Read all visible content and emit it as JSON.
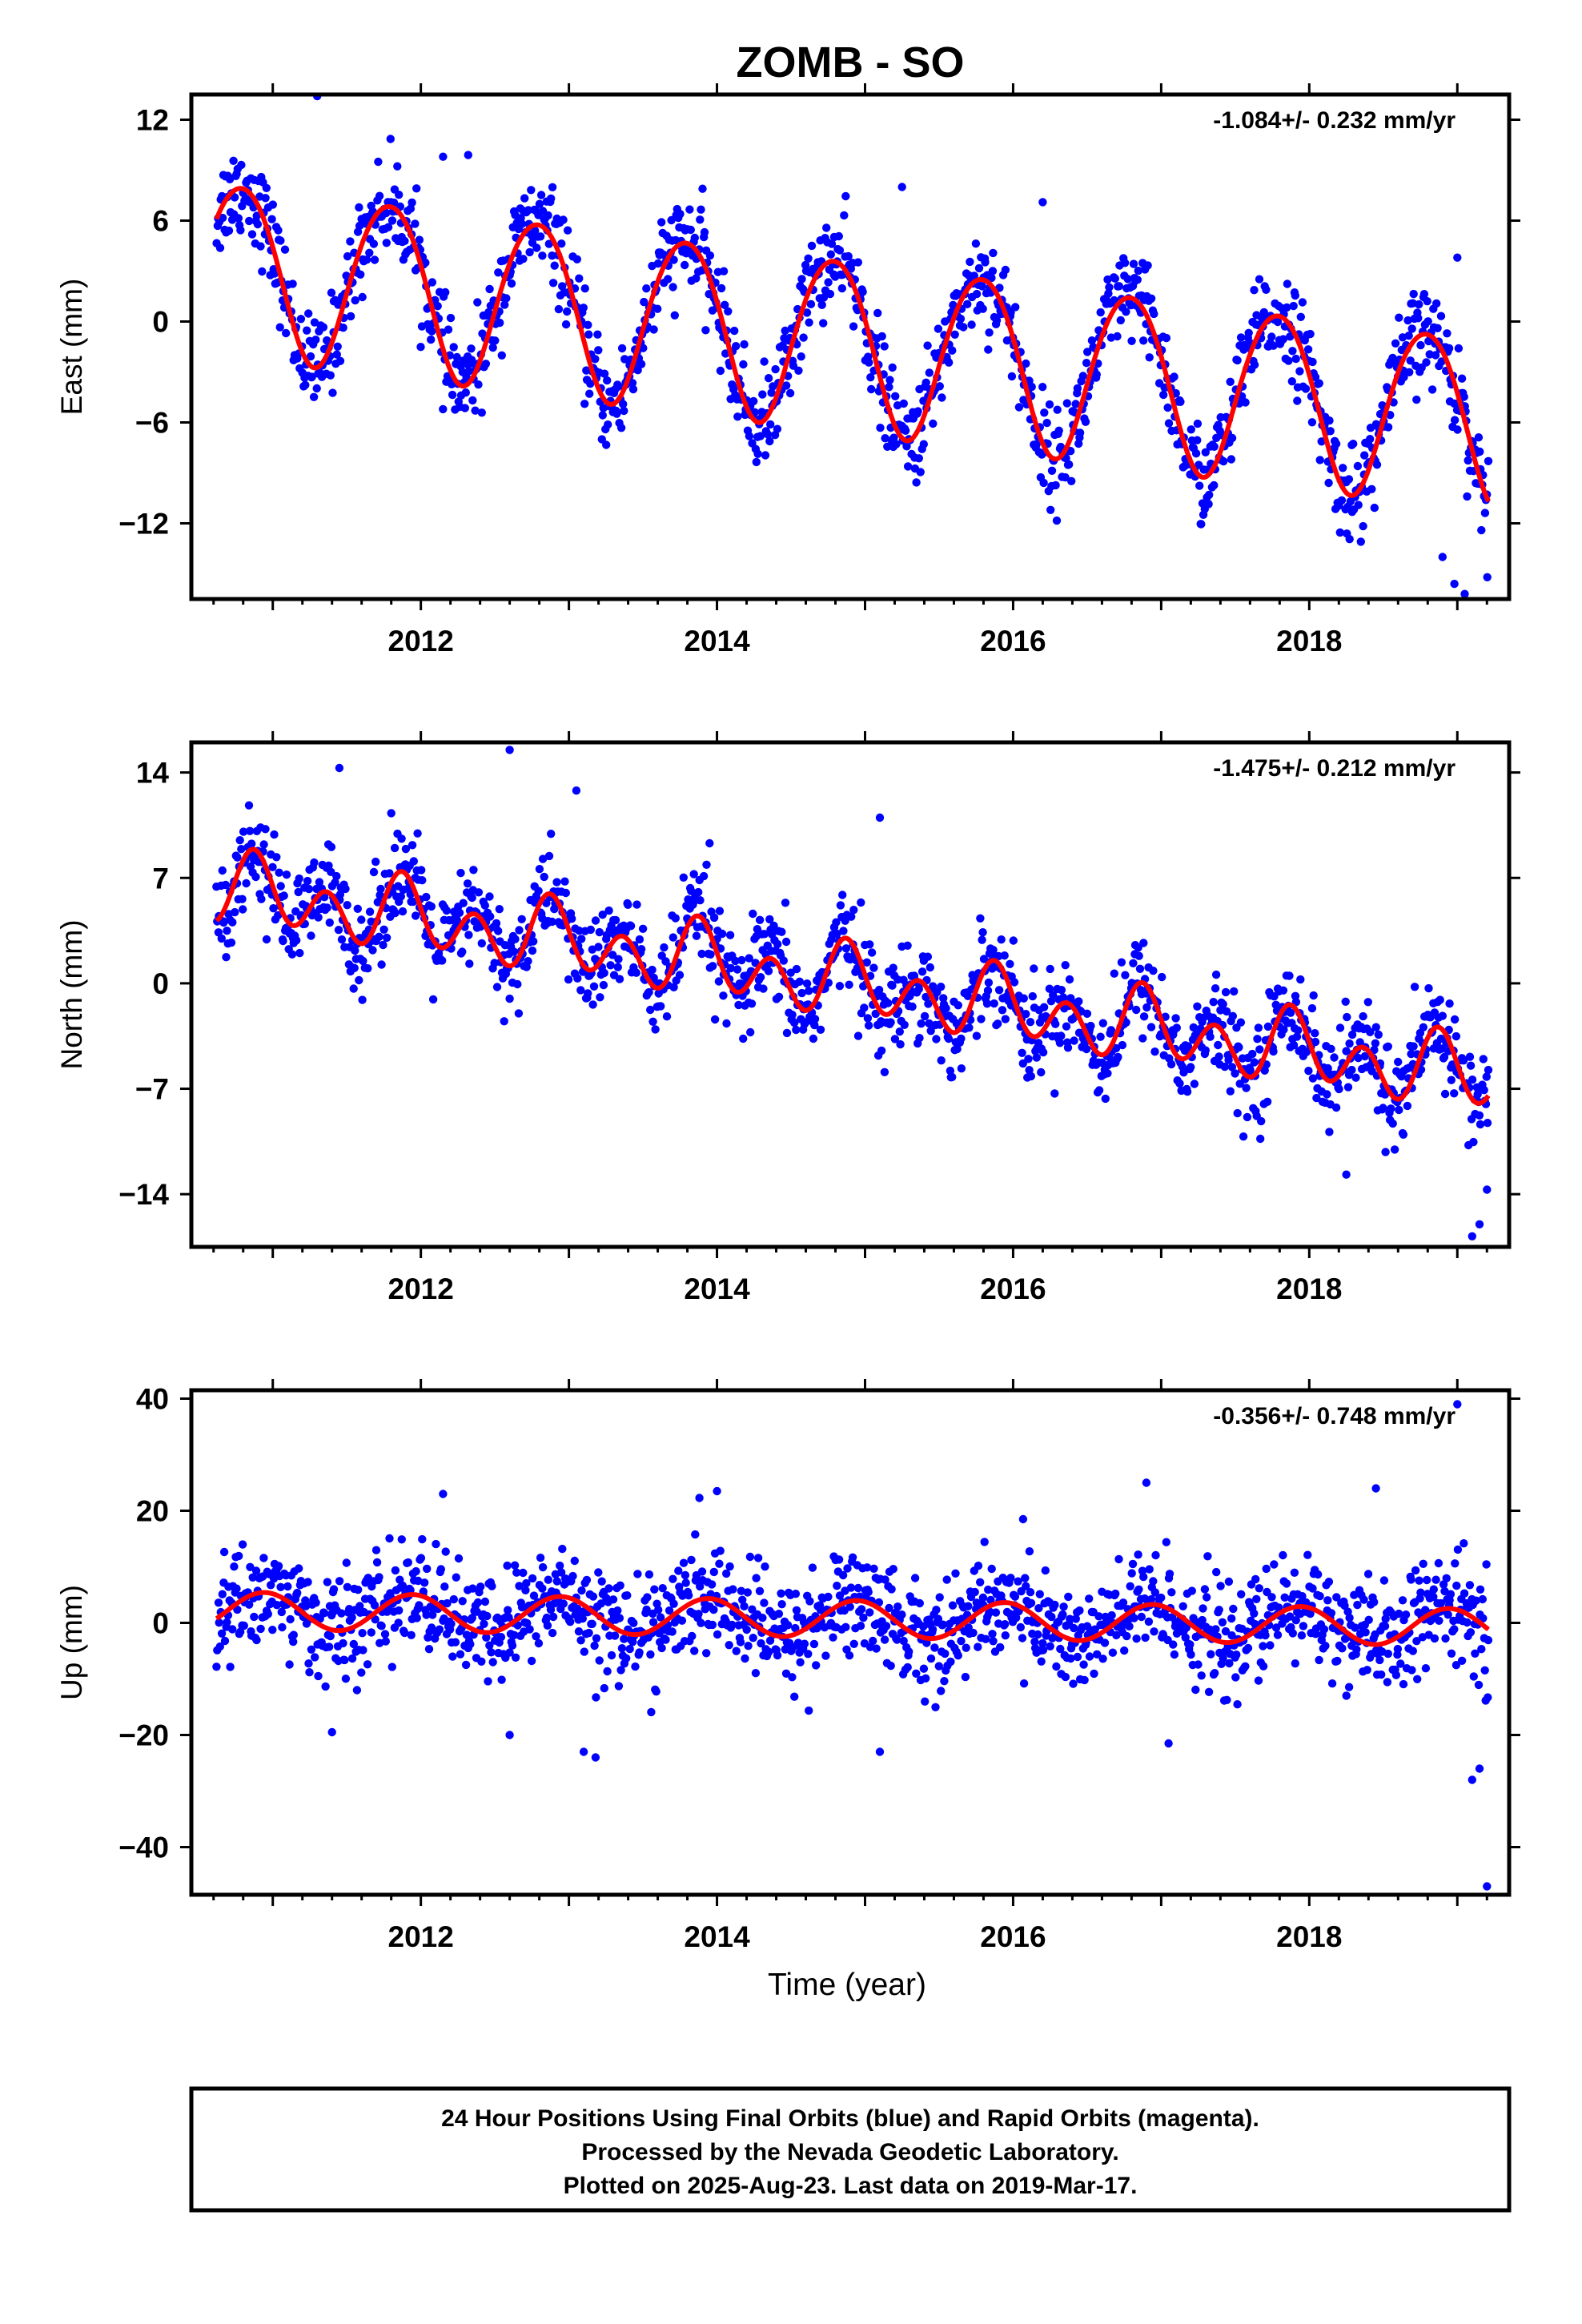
{
  "title": "ZOMB - SO",
  "x_axis_label": "Time (year)",
  "footer": [
    "24 Hour Positions Using Final Orbits (blue) and Rapid Orbits (magenta).",
    "Processed by the Nevada Geodetic Laboratory.",
    "Plotted on 2025-Aug-23. Last data on 2019-Mar-17."
  ],
  "colors": {
    "points": "#0000ff",
    "fit": "#ff0000",
    "frame": "#000000"
  },
  "chart_data": [
    {
      "type": "scatter",
      "component": "east",
      "ylabel": "East (mm)",
      "rate_label": "-1.084+/- 0.232 mm/yr",
      "xlim": [
        2010.45,
        2019.35
      ],
      "ylim": [
        -16.5,
        13.5
      ],
      "x_ticks": [
        2012,
        2014,
        2016,
        2018
      ],
      "y_ticks": [
        -12,
        -6,
        0,
        6,
        12
      ],
      "grid": false,
      "series": [
        {
          "kind": "points",
          "x_start": 2010.62,
          "x_end": 2019.21,
          "scatter_sd": 1.4,
          "fit": {
            "t0": 2014.9,
            "intercept": -1.25,
            "slope": -1.084,
            "annual_sin": -4.95,
            "annual_cos": 1.1,
            "semi_sin": 0.1,
            "semi_cos": 0.35
          }
        },
        {
          "kind": "line",
          "name": "",
          "x_start": 2010.62,
          "x_end": 2019.21,
          "fit": {
            "t0": 2014.9,
            "intercept": -1.25,
            "slope": -1.084,
            "annual_sin": -4.95,
            "annual_cos": 1.1,
            "semi_sin": 0.1,
            "semi_cos": 0.35
          }
        }
      ],
      "outliers": [
        [
          2011.3,
          13.4
        ],
        [
          2012.15,
          9.8
        ],
        [
          2012.32,
          9.9
        ],
        [
          2015.25,
          8.0
        ],
        [
          2016.2,
          7.1
        ],
        [
          2019.0,
          3.8
        ],
        [
          2018.9,
          -14.0
        ],
        [
          2018.98,
          -15.6
        ],
        [
          2019.05,
          -16.2
        ]
      ]
    },
    {
      "type": "scatter",
      "component": "north",
      "ylabel": "North (mm)",
      "rate_label": "-1.475+/- 0.212 mm/yr",
      "xlim": [
        2010.45,
        2019.35
      ],
      "ylim": [
        -17.5,
        16.0
      ],
      "x_ticks": [
        2012,
        2014,
        2016,
        2018
      ],
      "y_ticks": [
        -14,
        -7,
        0,
        7,
        14
      ],
      "grid": false,
      "series": [
        {
          "kind": "points",
          "x_start": 2010.62,
          "x_end": 2019.21,
          "scatter_sd": 1.6,
          "fit": {
            "t0": 2014.9,
            "intercept": 0.0,
            "slope": -1.475,
            "annual_sin": -0.6,
            "annual_cos": 0.9,
            "semi_sin": -1.9,
            "semi_cos": -0.2
          }
        },
        {
          "kind": "line",
          "name": "",
          "x_start": 2010.62,
          "x_end": 2019.21,
          "fit": {
            "t0": 2014.9,
            "intercept": 0.0,
            "slope": -1.475,
            "annual_sin": -0.6,
            "annual_cos": 0.9,
            "semi_sin": -1.9,
            "semi_cos": -0.2
          }
        }
      ],
      "outliers": [
        [
          2011.45,
          14.3
        ],
        [
          2012.6,
          15.5
        ],
        [
          2013.05,
          12.8
        ],
        [
          2015.1,
          11.0
        ],
        [
          2011.8,
          11.3
        ],
        [
          2013.95,
          9.3
        ],
        [
          2019.1,
          -16.8
        ],
        [
          2019.15,
          -16.0
        ],
        [
          2018.25,
          -12.7
        ],
        [
          2019.2,
          -13.7
        ]
      ]
    },
    {
      "type": "scatter",
      "component": "up",
      "ylabel": "Up (mm)",
      "rate_label": "-0.356+/- 0.748 mm/yr",
      "xlim": [
        2010.45,
        2019.35
      ],
      "ylim": [
        -48.5,
        41.5
      ],
      "x_ticks": [
        2012,
        2014,
        2016,
        2018
      ],
      "y_ticks": [
        -40,
        -20,
        0,
        20,
        40
      ],
      "grid": false,
      "series": [
        {
          "kind": "points",
          "x_start": 2010.62,
          "x_end": 2019.21,
          "scatter_sd": 4.8,
          "fit": {
            "t0": 2014.9,
            "intercept": 0.7,
            "slope": -0.356,
            "annual_sin": -1.15,
            "annual_cos": 3.1,
            "semi_sin": 0.0,
            "semi_cos": 0.0
          }
        },
        {
          "kind": "line",
          "name": "",
          "x_start": 2010.62,
          "x_end": 2019.21,
          "fit": {
            "t0": 2014.9,
            "intercept": 0.7,
            "slope": -0.356,
            "annual_sin": -1.15,
            "annual_cos": 3.1,
            "semi_sin": 0.0,
            "semi_cos": 0.0
          }
        }
      ],
      "outliers": [
        [
          2019.0,
          39.0
        ],
        [
          2016.9,
          25.0
        ],
        [
          2018.45,
          24.0
        ],
        [
          2012.15,
          23.0
        ],
        [
          2014.0,
          23.5
        ],
        [
          2013.1,
          -23.0
        ],
        [
          2013.18,
          -24.0
        ],
        [
          2015.1,
          -23.0
        ],
        [
          2012.6,
          -20.0
        ],
        [
          2011.4,
          -19.5
        ],
        [
          2017.05,
          -21.5
        ],
        [
          2019.1,
          -28.0
        ],
        [
          2019.15,
          -26.0
        ],
        [
          2019.2,
          -47.0
        ]
      ]
    }
  ]
}
